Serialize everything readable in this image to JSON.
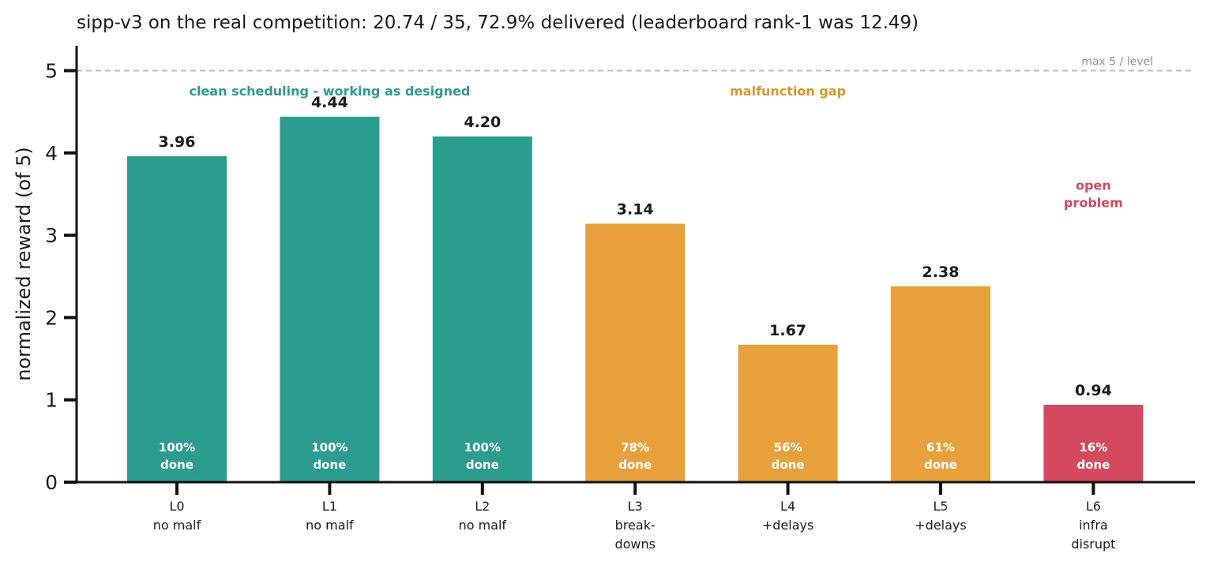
{
  "chart_data": {
    "type": "bar",
    "title": "sipp-v3 on the real competition: 20.74 / 35, 72.9% delivered  (leaderboard rank-1 was 12.49)",
    "ylabel": "normalized reward (of 5)",
    "xlabel": "",
    "ylim": [
      0,
      5.3
    ],
    "yticks": [
      "0",
      "1",
      "2",
      "3",
      "4",
      "5"
    ],
    "grid": false,
    "categories": [
      [
        "L0",
        "no malf"
      ],
      [
        "L1",
        "no malf"
      ],
      [
        "L2",
        "no malf"
      ],
      [
        "L3",
        "break-",
        "downs"
      ],
      [
        "L4",
        "+delays"
      ],
      [
        "L5",
        "+delays"
      ],
      [
        "L6",
        "infra",
        "disrupt"
      ]
    ],
    "values": [
      3.96,
      4.44,
      4.2,
      3.14,
      1.67,
      2.38,
      0.94
    ],
    "value_labels": [
      "3.96",
      "4.44",
      "4.20",
      "3.14",
      "1.67",
      "2.38",
      "0.94"
    ],
    "done_labels": [
      [
        "100%",
        "done"
      ],
      [
        "100%",
        "done"
      ],
      [
        "100%",
        "done"
      ],
      [
        "78%",
        "done"
      ],
      [
        "56%",
        "done"
      ],
      [
        "61%",
        "done"
      ],
      [
        "16%",
        "done"
      ]
    ],
    "bar_colors": [
      "#2a9d8f",
      "#2a9d8f",
      "#2a9d8f",
      "#e8a13a",
      "#e8a13a",
      "#e8a13a",
      "#d4495e"
    ],
    "reference_line": {
      "y": 5,
      "label": "max 5 / level",
      "color": "#b8bccb"
    },
    "annotations": [
      {
        "lines": [
          "clean scheduling - working as designed"
        ],
        "x": 1,
        "y": 4.7,
        "color": "#2a9d8f"
      },
      {
        "lines": [
          "malfunction gap"
        ],
        "x": 4,
        "y": 4.7,
        "color": "#e09428"
      },
      {
        "lines": [
          "open",
          "problem"
        ],
        "x": 6,
        "y": 3.55,
        "color": "#d4495e"
      }
    ]
  }
}
